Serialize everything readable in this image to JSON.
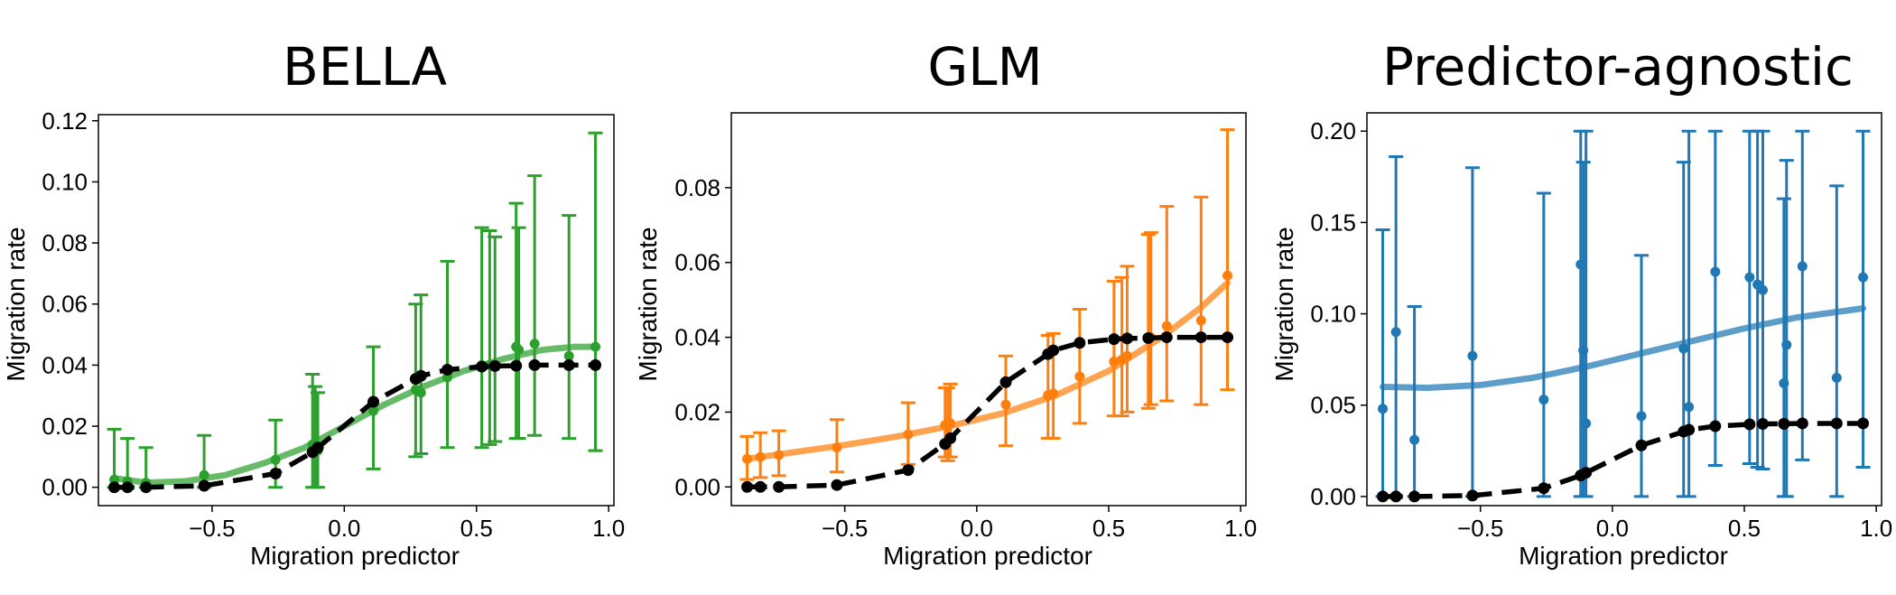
{
  "chart_data": [
    {
      "type": "line",
      "title": "BELLA",
      "xlabel": "Migration predictor",
      "ylabel": "Migration rate",
      "xlim": [
        -0.93,
        1.02
      ],
      "ylim": [
        -0.006,
        0.122
      ],
      "xticks": [
        -0.5,
        0.0,
        0.5,
        1.0
      ],
      "xtick_labels": [
        "−0.5",
        "0.0",
        "0.5",
        "1.0"
      ],
      "yticks": [
        0.0,
        0.02,
        0.04,
        0.06,
        0.08,
        0.1,
        0.12
      ],
      "ytick_labels": [
        "0.00",
        "0.02",
        "0.04",
        "0.06",
        "0.08",
        "0.10",
        "0.12"
      ],
      "color": "#2ca02c",
      "grid": false,
      "series": [
        {
          "role": "estimate",
          "x": [
            -0.87,
            -0.82,
            -0.75,
            -0.53,
            -0.26,
            -0.12,
            -0.11,
            -0.1,
            0.11,
            0.27,
            0.29,
            0.39,
            0.52,
            0.55,
            0.57,
            0.65,
            0.66,
            0.72,
            0.85,
            0.95
          ],
          "y": [
            0.0025,
            0.002,
            0.0015,
            0.004,
            0.009,
            0.014,
            0.013,
            0.012,
            0.025,
            0.032,
            0.031,
            0.036,
            0.04,
            0.04,
            0.04,
            0.046,
            0.045,
            0.047,
            0.043,
            0.046
          ],
          "err_low": [
            0.0,
            0.0,
            0.0,
            0.0,
            0.0,
            0.0,
            0.0,
            0.0,
            0.006,
            0.01,
            0.011,
            0.013,
            0.013,
            0.014,
            0.015,
            0.016,
            0.016,
            0.017,
            0.016,
            0.012
          ],
          "err_high": [
            0.019,
            0.016,
            0.013,
            0.017,
            0.022,
            0.037,
            0.033,
            0.031,
            0.046,
            0.06,
            0.063,
            0.074,
            0.085,
            0.084,
            0.082,
            0.093,
            0.085,
            0.102,
            0.089,
            0.116
          ]
        },
        {
          "role": "fit",
          "x": [
            -0.87,
            -0.75,
            -0.6,
            -0.45,
            -0.3,
            -0.15,
            0.0,
            0.15,
            0.3,
            0.45,
            0.6,
            0.75,
            0.87,
            0.95
          ],
          "y": [
            0.003,
            0.0015,
            0.002,
            0.004,
            0.008,
            0.013,
            0.02,
            0.027,
            0.033,
            0.038,
            0.042,
            0.045,
            0.046,
            0.046
          ]
        },
        {
          "role": "true",
          "x": [
            -0.87,
            -0.82,
            -0.75,
            -0.53,
            -0.26,
            -0.12,
            -0.1,
            0.11,
            0.27,
            0.29,
            0.39,
            0.52,
            0.57,
            0.65,
            0.72,
            0.85,
            0.95
          ],
          "y": [
            0.0,
            0.0,
            0.0,
            0.0005,
            0.0045,
            0.0115,
            0.013,
            0.028,
            0.0355,
            0.0365,
            0.0385,
            0.0395,
            0.0397,
            0.0398,
            0.04,
            0.04,
            0.04
          ]
        }
      ]
    },
    {
      "type": "line",
      "title": "GLM",
      "xlabel": "Migration predictor",
      "ylabel": "Migration rate",
      "xlim": [
        -0.93,
        1.02
      ],
      "ylim": [
        -0.005,
        0.1
      ],
      "xticks": [
        -0.5,
        0.0,
        0.5,
        1.0
      ],
      "xtick_labels": [
        "−0.5",
        "0.0",
        "0.5",
        "1.0"
      ],
      "yticks": [
        0.0,
        0.02,
        0.04,
        0.06,
        0.08
      ],
      "ytick_labels": [
        "0.00",
        "0.02",
        "0.04",
        "0.06",
        "0.08"
      ],
      "color": "#ff7f0e",
      "grid": false,
      "series": [
        {
          "role": "estimate",
          "x": [
            -0.87,
            -0.82,
            -0.75,
            -0.53,
            -0.26,
            -0.12,
            -0.11,
            -0.1,
            0.11,
            0.27,
            0.29,
            0.39,
            0.52,
            0.55,
            0.57,
            0.65,
            0.66,
            0.72,
            0.85,
            0.95
          ],
          "y": [
            0.0075,
            0.008,
            0.0085,
            0.0105,
            0.014,
            0.0165,
            0.016,
            0.017,
            0.022,
            0.0245,
            0.025,
            0.0295,
            0.0335,
            0.034,
            0.035,
            0.04,
            0.04,
            0.043,
            0.0445,
            0.0565
          ],
          "err_low": [
            0.002,
            0.0025,
            0.003,
            0.004,
            0.006,
            0.008,
            0.007,
            0.008,
            0.011,
            0.013,
            0.013,
            0.017,
            0.019,
            0.019,
            0.02,
            0.021,
            0.022,
            0.023,
            0.022,
            0.026
          ],
          "err_high": [
            0.0135,
            0.0145,
            0.015,
            0.018,
            0.0225,
            0.0265,
            0.0265,
            0.0275,
            0.035,
            0.0405,
            0.041,
            0.0475,
            0.055,
            0.056,
            0.059,
            0.0675,
            0.068,
            0.075,
            0.0775,
            0.0955
          ]
        },
        {
          "role": "fit",
          "x": [
            -0.87,
            -0.7,
            -0.5,
            -0.3,
            -0.1,
            0.1,
            0.3,
            0.5,
            0.7,
            0.85,
            0.95
          ],
          "y": [
            0.0075,
            0.0092,
            0.0112,
            0.0135,
            0.0163,
            0.0197,
            0.0245,
            0.031,
            0.04,
            0.048,
            0.0545
          ]
        },
        {
          "role": "true",
          "x": [
            -0.87,
            -0.82,
            -0.75,
            -0.53,
            -0.26,
            -0.12,
            -0.1,
            0.11,
            0.27,
            0.29,
            0.39,
            0.52,
            0.57,
            0.65,
            0.72,
            0.85,
            0.95
          ],
          "y": [
            0.0,
            0.0,
            0.0,
            0.0005,
            0.0045,
            0.0115,
            0.013,
            0.028,
            0.0355,
            0.0365,
            0.0385,
            0.0395,
            0.0397,
            0.0398,
            0.04,
            0.04,
            0.04
          ]
        }
      ]
    },
    {
      "type": "line",
      "title": "Predictor-agnostic",
      "xlabel": "Migration predictor",
      "ylabel": "Migration rate",
      "xlim": [
        -0.93,
        1.02
      ],
      "ylim": [
        -0.005,
        0.21
      ],
      "xticks": [
        -0.5,
        0.0,
        0.5,
        1.0
      ],
      "xtick_labels": [
        "−0.5",
        "0.0",
        "0.5",
        "1.0"
      ],
      "yticks": [
        0.0,
        0.05,
        0.1,
        0.15,
        0.2
      ],
      "ytick_labels": [
        "0.00",
        "0.05",
        "0.10",
        "0.15",
        "0.20"
      ],
      "color": "#1f77b4",
      "grid": false,
      "series": [
        {
          "role": "estimate",
          "x": [
            -0.87,
            -0.82,
            -0.75,
            -0.53,
            -0.26,
            -0.12,
            -0.11,
            -0.1,
            0.11,
            0.27,
            0.29,
            0.39,
            0.52,
            0.55,
            0.57,
            0.65,
            0.66,
            0.72,
            0.85,
            0.95
          ],
          "y": [
            0.048,
            0.09,
            0.031,
            0.077,
            0.053,
            0.127,
            0.08,
            0.04,
            0.044,
            0.081,
            0.049,
            0.123,
            0.12,
            0.116,
            0.113,
            0.062,
            0.083,
            0.126,
            0.065,
            0.12
          ],
          "err_low": [
            0.0,
            0.0,
            0.0,
            0.0,
            0.0,
            0.0,
            0.0,
            0.0,
            0.0,
            0.0,
            0.0,
            0.017,
            0.018,
            0.016,
            0.015,
            0.0,
            0.0,
            0.02,
            0.0,
            0.016
          ],
          "err_high": [
            0.146,
            0.186,
            0.104,
            0.18,
            0.166,
            0.2,
            0.183,
            0.2,
            0.132,
            0.183,
            0.2,
            0.2,
            0.2,
            0.2,
            0.2,
            0.163,
            0.184,
            0.2,
            0.17,
            0.2
          ]
        },
        {
          "role": "fit",
          "x": [
            -0.87,
            -0.7,
            -0.5,
            -0.3,
            -0.1,
            0.1,
            0.3,
            0.5,
            0.7,
            0.85,
            0.95
          ],
          "y": [
            0.06,
            0.0595,
            0.061,
            0.065,
            0.071,
            0.078,
            0.085,
            0.092,
            0.098,
            0.101,
            0.103
          ]
        },
        {
          "role": "true",
          "x": [
            -0.87,
            -0.82,
            -0.75,
            -0.53,
            -0.26,
            -0.12,
            -0.1,
            0.11,
            0.27,
            0.29,
            0.39,
            0.52,
            0.57,
            0.65,
            0.72,
            0.85,
            0.95
          ],
          "y": [
            0.0,
            0.0,
            0.0,
            0.0005,
            0.0045,
            0.0115,
            0.013,
            0.028,
            0.0355,
            0.0365,
            0.0385,
            0.0395,
            0.0397,
            0.0398,
            0.04,
            0.04,
            0.04
          ]
        }
      ]
    }
  ]
}
